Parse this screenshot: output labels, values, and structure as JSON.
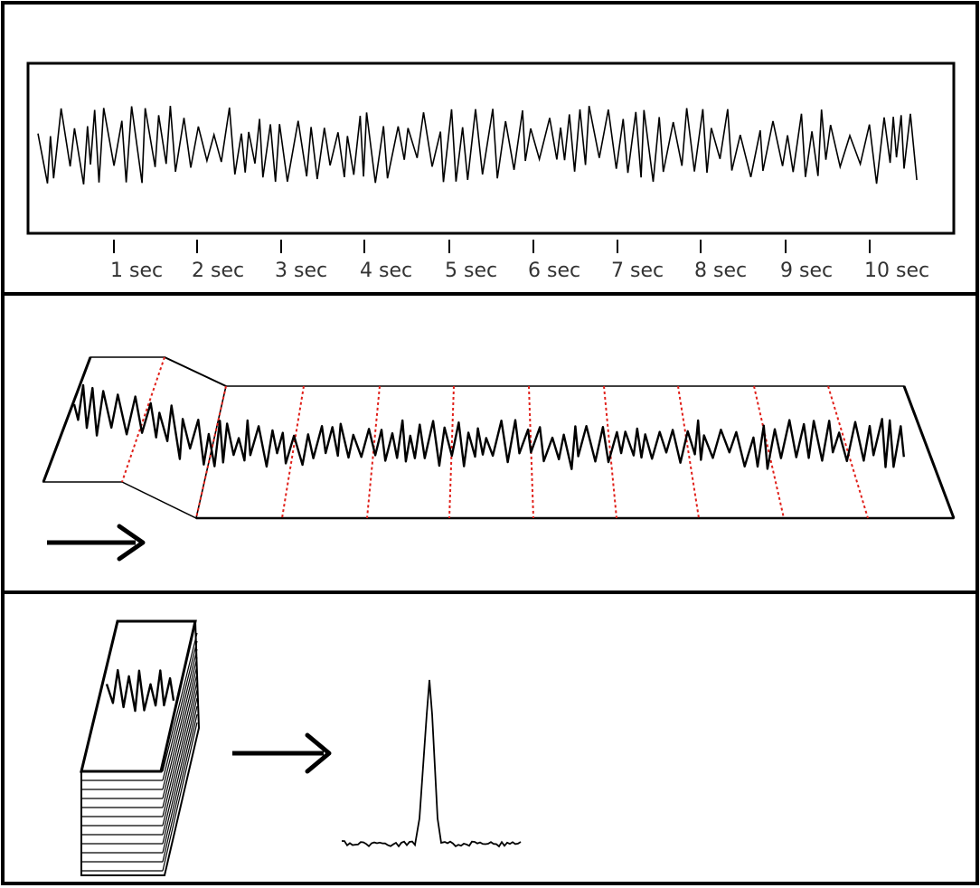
{
  "panels": [
    {
      "id": "continuous-signal"
    },
    {
      "id": "folded-segments"
    },
    {
      "id": "stacked-average"
    }
  ],
  "time_axis": {
    "ticks": [
      "1 sec",
      "2 sec",
      "3 sec",
      "4 sec",
      "5 sec",
      "6 sec",
      "7 sec",
      "8 sec",
      "9 sec",
      "10 sec"
    ]
  },
  "colors": {
    "line": "#000000",
    "segment_divider": "#e0201a",
    "tick_text": "#333333",
    "background": "#ffffff"
  },
  "icons": [
    "right-arrow-icon",
    "right-arrow-icon"
  ]
}
